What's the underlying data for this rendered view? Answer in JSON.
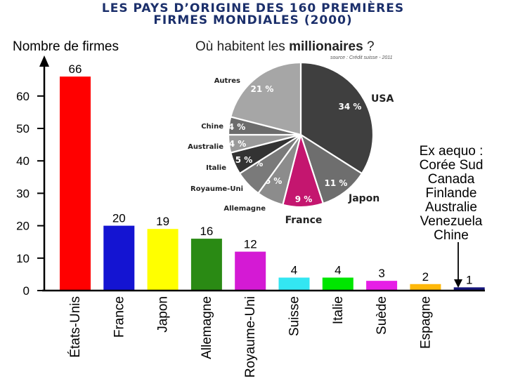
{
  "title": {
    "line1": "LES PAYS D’ORIGINE DES 160 PREMIÈRES",
    "line2": "FIRMES MONDIALES (2000)"
  },
  "chart_data": [
    {
      "type": "bar",
      "title": "LES PAYS D’ORIGINE DES 160 PREMIÈRES FIRMES MONDIALES (2000)",
      "ylabel": "Nombre de firmes",
      "xlabel": "",
      "ylim": [
        0,
        70
      ],
      "yticks": [
        0,
        10,
        20,
        30,
        40,
        50,
        60
      ],
      "categories": [
        "États-Unis",
        "France",
        "Japon",
        "Allemagne",
        "Royaume-Uni",
        "Suisse",
        "Italie",
        "Suède",
        "Espagne",
        ""
      ],
      "values": [
        66,
        20,
        19,
        16,
        12,
        4,
        4,
        3,
        2,
        1
      ],
      "colors": [
        "#ff0000",
        "#1414d2",
        "#ffff00",
        "#2a8a14",
        "#d41ad4",
        "#33e6f2",
        "#00e600",
        "#e61ee6",
        "#ffb80a",
        "#14147a"
      ],
      "annotation": {
        "lines": [
          "Ex aequo :",
          "Corée Sud",
          "Canada",
          "Finlande",
          "Australie",
          "Venezuela",
          "Chine"
        ]
      }
    },
    {
      "type": "pie",
      "title_prefix": "Où habitent les ",
      "title_bold": "millionaires",
      "title_suffix": " ?",
      "source": "source : Crédit suisse - 2011",
      "slices": [
        {
          "label": "USA",
          "value": 34,
          "display": "34 %",
          "color": "#3f3f3f"
        },
        {
          "label": "Japon",
          "value": 11,
          "display": "11 %",
          "color": "#6e6e6e"
        },
        {
          "label": "France",
          "value": 9,
          "display": "9 %",
          "color": "#c4166f"
        },
        {
          "label": "Allemagne",
          "value": 6,
          "display": "6 %",
          "color": "#8c8c8c"
        },
        {
          "label": "Royaume-Uni",
          "value": 6,
          "display": "6 %",
          "color": "#7a7a7a"
        },
        {
          "label": "Italie",
          "value": 5,
          "display": "5 %",
          "color": "#333333"
        },
        {
          "label": "Australie",
          "value": 4,
          "display": "4 %",
          "color": "#9a9a9a"
        },
        {
          "label": "Chine",
          "value": 4,
          "display": "4 %",
          "color": "#6c6c6c"
        },
        {
          "label": "Autres",
          "value": 21,
          "display": "21 %",
          "color": "#a6a6a6"
        }
      ]
    }
  ]
}
